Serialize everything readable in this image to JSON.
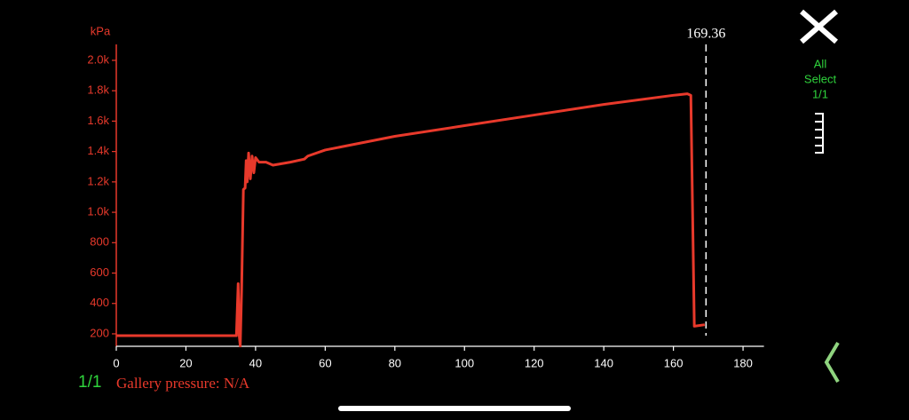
{
  "chart_data": {
    "type": "line",
    "y_label": "kPa",
    "color": "#e8392b",
    "x": [
      0,
      34.5,
      35,
      35.3,
      35.6,
      36,
      36.5,
      37,
      37.3,
      37.6,
      38,
      38.5,
      39,
      39.5,
      40,
      41,
      43,
      45,
      50,
      54,
      55,
      60,
      80,
      100,
      120,
      140,
      160,
      164,
      165,
      166,
      169
    ],
    "values": [
      188,
      188,
      530,
      190,
      120,
      500,
      1150,
      1160,
      1340,
      1200,
      1390,
      1220,
      1370,
      1260,
      1360,
      1330,
      1330,
      1310,
      1330,
      1350,
      1370,
      1410,
      1500,
      1570,
      1640,
      1710,
      1770,
      1780,
      1770,
      250,
      260
    ],
    "xlim": [
      0,
      186
    ],
    "ylim": [
      118,
      2105
    ],
    "xticks": [
      0,
      20,
      40,
      60,
      80,
      100,
      120,
      140,
      160,
      180
    ],
    "yticks": [
      200,
      400,
      600,
      800,
      {
        "value": 1000,
        "label": "1.0k"
      },
      {
        "value": 1200,
        "label": "1.2k"
      },
      {
        "value": 1400,
        "label": "1.4k"
      },
      {
        "value": 1600,
        "label": "1.6k"
      },
      {
        "value": 1800,
        "label": "1.8k"
      },
      {
        "value": 2000,
        "label": "2.0k"
      }
    ],
    "cursor": {
      "x": 169.36
    }
  },
  "sidebar": {
    "lines": [
      "All",
      "Select",
      "1/1"
    ]
  },
  "page_indicator": "1/1",
  "status": "Gallery pressure: N/A"
}
